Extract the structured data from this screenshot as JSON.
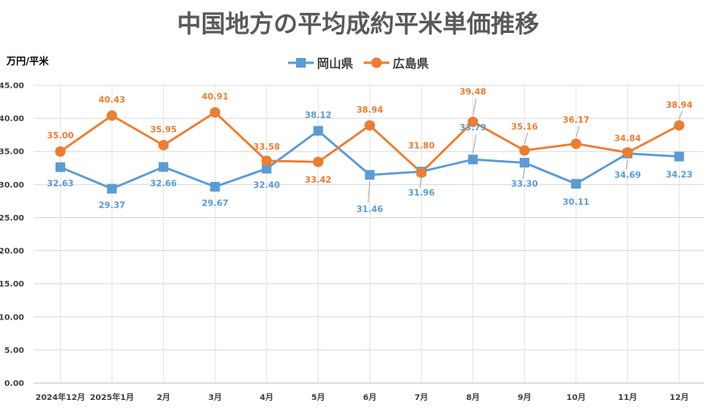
{
  "chart_data": {
    "type": "line",
    "title": "中国地方の平均成約平米単価推移",
    "ylabel": "万円/平米",
    "xlabel": "",
    "ylim": [
      0,
      45
    ],
    "ytick_step": 5,
    "ytick_labels": [
      "0.00",
      "5.00",
      "10.00",
      "15.00",
      "20.00",
      "25.00",
      "30.00",
      "35.00",
      "40.00",
      "45.00"
    ],
    "grid": true,
    "legend": "top-center",
    "categories": [
      "2024年12月",
      "2025年1月",
      "2月",
      "3月",
      "4月",
      "5月",
      "6月",
      "7月",
      "8月",
      "9月",
      "10月",
      "11月",
      "12月"
    ],
    "series": [
      {
        "name": "岡山県",
        "color": "#5B9BD5",
        "marker": "square",
        "values": [
          32.63,
          29.37,
          32.66,
          29.67,
          32.4,
          38.12,
          31.46,
          31.96,
          33.79,
          33.3,
          30.11,
          34.69,
          34.23
        ],
        "labels": [
          "32.63",
          "29.37",
          "32.66",
          "29.67",
          "32.40",
          "38.12",
          "31.46",
          "31.96",
          "33.79",
          "33.30",
          "30.11",
          "34.69",
          "34.23"
        ]
      },
      {
        "name": "広島県",
        "color": "#ED7D31",
        "marker": "circle",
        "values": [
          35.0,
          40.43,
          35.95,
          40.91,
          33.58,
          33.42,
          38.94,
          31.8,
          39.48,
          35.16,
          36.17,
          34.84,
          38.94
        ],
        "labels": [
          "35.00",
          "40.43",
          "35.95",
          "40.91",
          "33.58",
          "33.42",
          "38.94",
          "31.80",
          "39.48",
          "35.16",
          "36.17",
          "34.84",
          "38.94"
        ]
      }
    ]
  }
}
